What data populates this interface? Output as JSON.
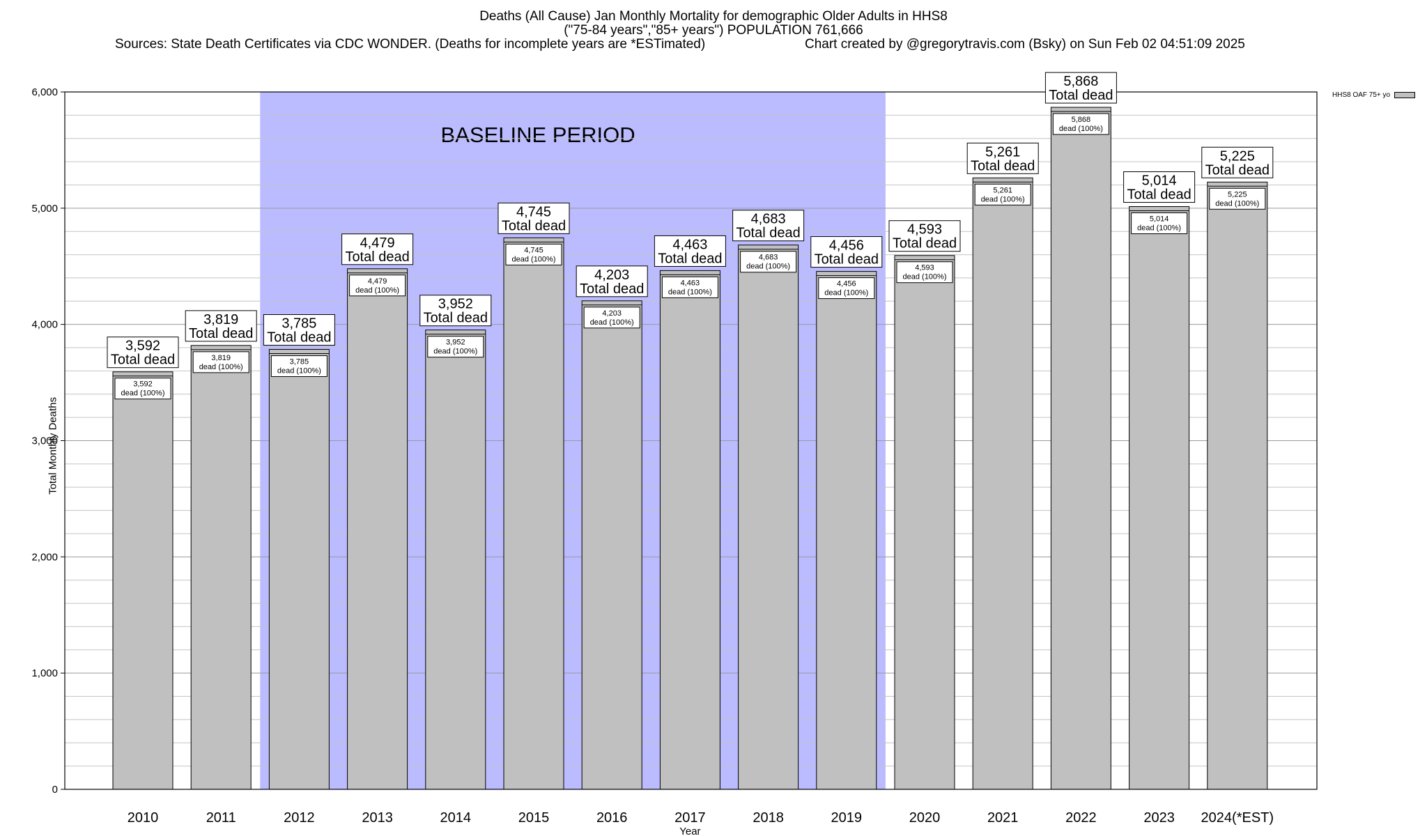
{
  "title": {
    "line1": "Deaths (All Cause) Jan Monthly Mortality for demographic Older Adults in HHS8",
    "line2": "(\"75-84 years\",\"85+ years\") POPULATION 761,666",
    "line3": "Sources: State Death Certificates via CDC WONDER. (Deaths for incomplete years are *ESTimated)",
    "line4": "Chart created by @gregorytravis.com (Bsky) on Sun Feb 02 04:51:09 2025"
  },
  "chart_data": {
    "type": "bar",
    "xlabel": "Year",
    "ylabel": "Total Monthly Deaths",
    "ylim": [
      0,
      6000
    ],
    "yticks": [
      0,
      1000,
      2000,
      3000,
      4000,
      5000,
      6000
    ],
    "ytick_labels": [
      "0",
      "1,000",
      "2,000",
      "3,000",
      "4,000",
      "5,000",
      "6,000"
    ],
    "minor_grid_step": 200,
    "categories": [
      "2010",
      "2011",
      "2012",
      "2013",
      "2014",
      "2015",
      "2016",
      "2017",
      "2018",
      "2019",
      "2020",
      "2021",
      "2022",
      "2023",
      "2024(*EST)"
    ],
    "series": [
      {
        "name": "HHS8 OAF 75+ yo",
        "color": "#c0c0c0",
        "values": [
          3592,
          3819,
          3785,
          4479,
          3952,
          4745,
          4203,
          4463,
          4683,
          4456,
          4593,
          5261,
          5868,
          5014,
          5225
        ]
      }
    ],
    "value_labels": [
      "3,592",
      "3,819",
      "3,785",
      "4,479",
      "3,952",
      "4,745",
      "4,203",
      "4,463",
      "4,683",
      "4,456",
      "4,593",
      "5,261",
      "5,868",
      "5,014",
      "5,225"
    ],
    "total_label_suffix": "Total dead",
    "inner_label_suffix": "dead (100%)",
    "baseline": {
      "label": "BASELINE PERIOD",
      "start_category": "2012",
      "end_category": "2019",
      "color": "#bbbbff"
    },
    "legend_position": "top-right",
    "grid": true
  }
}
